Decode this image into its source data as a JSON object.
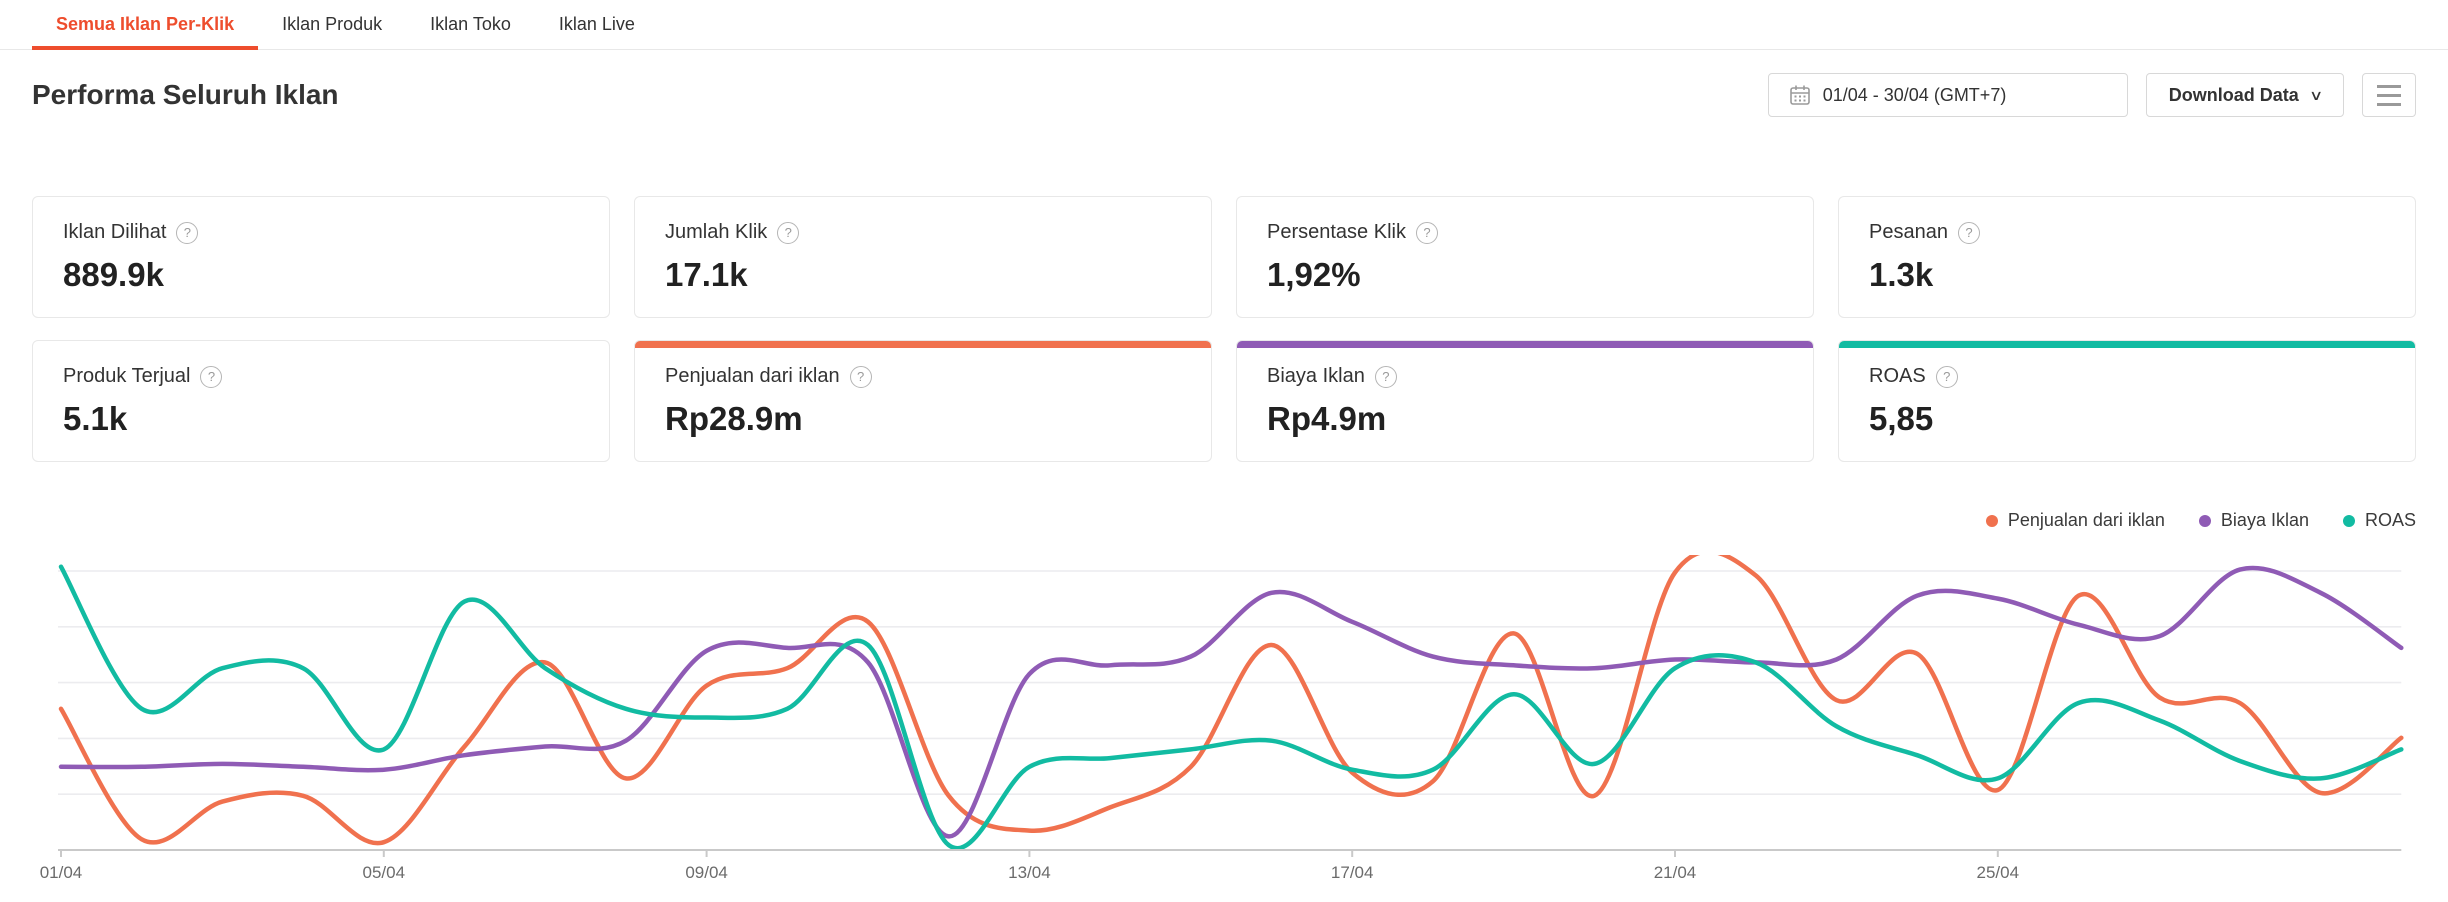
{
  "tabs": {
    "items": [
      {
        "label": "Semua Iklan Per-Klik",
        "active": true
      },
      {
        "label": "Iklan Produk",
        "active": false
      },
      {
        "label": "Iklan Toko",
        "active": false
      },
      {
        "label": "Iklan Live",
        "active": false
      }
    ]
  },
  "header": {
    "title": "Performa Seluruh Iklan",
    "date_range": "01/04 - 30/04 (GMT+7)",
    "download_label": "Download Data"
  },
  "cards": [
    {
      "label": "Iklan Dilihat",
      "value": "889.9k",
      "accent": null
    },
    {
      "label": "Jumlah Klik",
      "value": "17.1k",
      "accent": null
    },
    {
      "label": "Persentase Klik",
      "value": "1,92%",
      "accent": null
    },
    {
      "label": "Pesanan",
      "value": "1.3k",
      "accent": null
    },
    {
      "label": "Produk Terjual",
      "value": "5.1k",
      "accent": null
    },
    {
      "label": "Penjualan dari iklan",
      "value": "Rp28.9m",
      "accent": "#F0714E"
    },
    {
      "label": "Biaya Iklan",
      "value": "Rp4.9m",
      "accent": "#8F5BB5"
    },
    {
      "label": "ROAS",
      "value": "5,85",
      "accent": "#12BBA2"
    }
  ],
  "legend": [
    {
      "label": "Penjualan dari iklan",
      "color": "#F0714E"
    },
    {
      "label": "Biaya Iklan",
      "color": "#8F5BB5"
    },
    {
      "label": "ROAS",
      "color": "#12BBA2"
    }
  ],
  "colors": {
    "tab_active": "#EE4D2D",
    "gridline": "#ECECEF",
    "axis": "#C9C9C9",
    "axis_label": "#6B6B6B"
  },
  "chart_data": {
    "type": "line",
    "smooth": true,
    "x": [
      "01/04",
      "02/04",
      "03/04",
      "04/04",
      "05/04",
      "06/04",
      "07/04",
      "08/04",
      "09/04",
      "10/04",
      "11/04",
      "12/04",
      "13/04",
      "14/04",
      "15/04",
      "16/04",
      "17/04",
      "18/04",
      "19/04",
      "20/04",
      "21/04",
      "22/04",
      "23/04",
      "24/04",
      "25/04",
      "26/04",
      "27/04",
      "28/04",
      "29/04",
      "30/04"
    ],
    "x_tick_labels": [
      "01/04",
      "05/04",
      "09/04",
      "13/04",
      "17/04",
      "21/04",
      "25/04"
    ],
    "x_tick_indices": [
      0,
      4,
      8,
      12,
      16,
      20,
      24
    ],
    "y_axis_labels_shown": false,
    "value_scale": "normalized_percent_of_plot_height_0_100",
    "grid": "horizontal",
    "legend_position": "top-right",
    "series": [
      {
        "name": "Penjualan dari iklan",
        "color": "#F0714E",
        "values": [
          48,
          3,
          16,
          18,
          2,
          35,
          64,
          24,
          56,
          62,
          78,
          18,
          6,
          14,
          28,
          70,
          26,
          23,
          74,
          18,
          95,
          94,
          51,
          67,
          20,
          87,
          52,
          50,
          19,
          38
        ]
      },
      {
        "name": "Biaya Iklan",
        "color": "#8F5BB5",
        "values": [
          28,
          28,
          29,
          28,
          27,
          32,
          35,
          37,
          68,
          69,
          64,
          4,
          60,
          63,
          66,
          88,
          78,
          66,
          63,
          62,
          65,
          64,
          65,
          87,
          86,
          77,
          73,
          96,
          88,
          69
        ]
      },
      {
        "name": "ROAS",
        "color": "#12BBA2",
        "values": [
          97,
          48,
          62,
          62,
          34,
          85,
          62,
          48,
          45,
          48,
          70,
          1,
          28,
          31,
          34,
          37,
          27,
          27,
          53,
          29,
          62,
          64,
          42,
          32,
          24,
          50,
          44,
          30,
          24,
          34
        ]
      }
    ]
  }
}
